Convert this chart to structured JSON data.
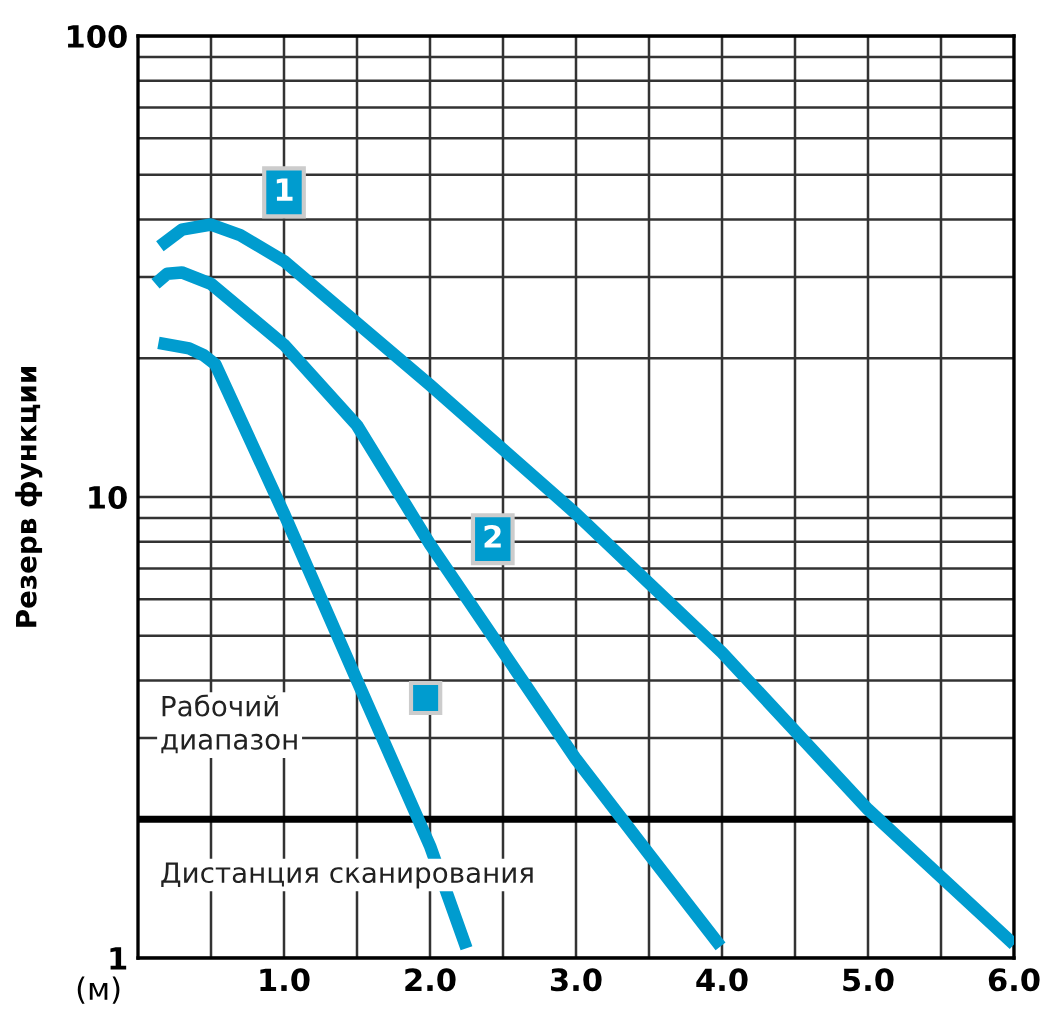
{
  "chart_data": {
    "type": "line",
    "xlabel": "(м)",
    "ylabel": "Резерв функции",
    "log": "y",
    "grid": true,
    "line_style": "solid",
    "marker": "none",
    "xlim": [
      0,
      6
    ],
    "xticks": [
      {
        "value": 0.5,
        "label": null
      },
      {
        "value": 1,
        "label": "1.0"
      },
      {
        "value": 1.5,
        "label": null
      },
      {
        "value": 2,
        "label": "2.0"
      },
      {
        "value": 2.5,
        "label": null
      },
      {
        "value": 3,
        "label": "3.0"
      },
      {
        "value": 3.5,
        "label": null
      },
      {
        "value": 4,
        "label": "4.0"
      },
      {
        "value": 4.5,
        "label": null
      },
      {
        "value": 5,
        "label": "5.0"
      },
      {
        "value": 5.5,
        "label": null
      },
      {
        "value": 6,
        "label": "6.0"
      }
    ],
    "ylim": [
      1,
      100
    ],
    "yticks": [
      1,
      {
        "value": 2,
        "label": null
      },
      {
        "value": 3,
        "label": null
      },
      {
        "value": 4,
        "label": null
      },
      {
        "value": 5,
        "label": null
      },
      {
        "value": 6,
        "label": null
      },
      {
        "value": 7,
        "label": null
      },
      {
        "value": 8,
        "label": null
      },
      {
        "value": 9,
        "label": null
      },
      10,
      {
        "value": 20,
        "label": null
      },
      {
        "value": 30,
        "label": null
      },
      {
        "value": 40,
        "label": null
      },
      {
        "value": 50,
        "label": null
      },
      {
        "value": 60,
        "label": null
      },
      {
        "value": 70,
        "label": null
      },
      {
        "value": 80,
        "label": null
      },
      {
        "value": 90,
        "label": null
      },
      100
    ],
    "series": [
      {
        "color": "#009ccf",
        "x": [
          0.15,
          0.3,
          0.5,
          0.7,
          1.0,
          2.0,
          3.0,
          4.0,
          5.0,
          6.0
        ],
        "values": [
          35,
          38,
          39,
          37,
          32.5,
          17.5,
          9.2,
          4.6,
          2.1,
          1.07
        ]
      },
      {
        "color": "#009ccf",
        "x": [
          0.12,
          0.2,
          0.3,
          0.5,
          1.0,
          1.5,
          2.0,
          3.0,
          3.5,
          3.99
        ],
        "values": [
          29,
          30.5,
          30.7,
          29,
          21.4,
          14.3,
          7.9,
          2.7,
          1.68,
          1.06
        ]
      },
      {
        "color": "#009ccf",
        "x": [
          0.14,
          0.35,
          0.45,
          0.53,
          1.0,
          1.5,
          2.0,
          2.25
        ],
        "values": [
          21.6,
          21,
          20.3,
          19.4,
          9.2,
          4.0,
          1.75,
          1.05
        ]
      }
    ],
    "ref_lines": [
      {
        "axis": "y",
        "value": 2,
        "color": "#000000"
      }
    ],
    "annotations": [
      {
        "text": "1",
        "x": 1.0,
        "y": 45.8
      },
      {
        "text": "2",
        "x": 2.43,
        "y": 8.1
      },
      "Рабочий\nдиапазон",
      "Дистанция сканирования"
    ]
  }
}
